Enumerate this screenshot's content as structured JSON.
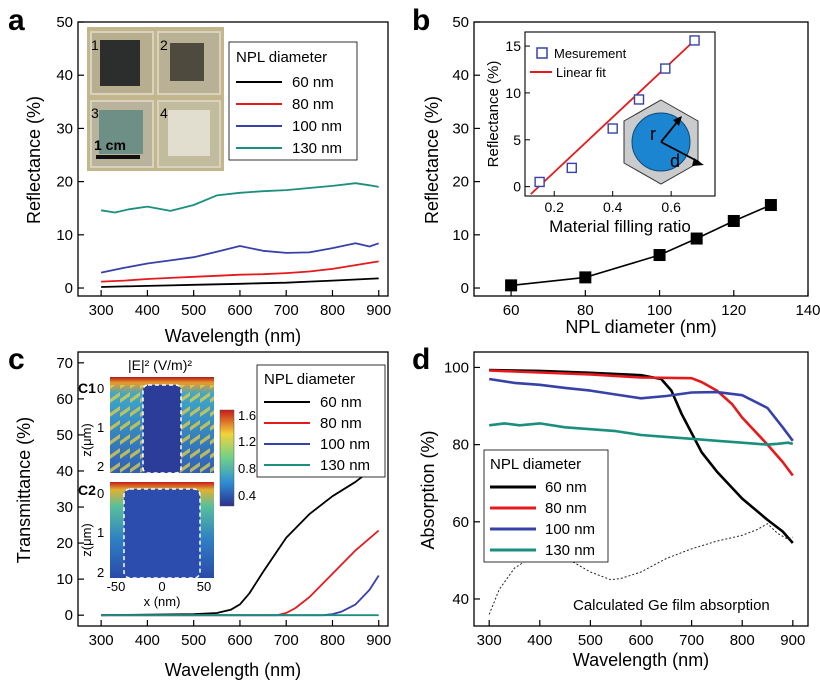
{
  "chart_data": [
    {
      "panel": "a",
      "type": "line",
      "xlabel": "Wavelength (nm)",
      "ylabel": "Reflectance (%)",
      "xlim": [
        250,
        920
      ],
      "ylim": [
        -1.5,
        50
      ],
      "xticks": [
        300,
        400,
        500,
        600,
        700,
        800,
        900
      ],
      "yticks": [
        0,
        10,
        20,
        30,
        40,
        50
      ],
      "legend_title": "NPL diameter",
      "legend_position": "top-right",
      "photo_labels": [
        "1",
        "2",
        "3",
        "4"
      ],
      "scale_bar_label": "1 cm",
      "series": [
        {
          "name": "60 nm",
          "color": "#000000",
          "x": [
            300,
            350,
            400,
            450,
            500,
            550,
            600,
            650,
            700,
            750,
            800,
            850,
            900
          ],
          "y": [
            0.2,
            0.3,
            0.4,
            0.5,
            0.6,
            0.7,
            0.8,
            0.9,
            1.0,
            1.2,
            1.4,
            1.6,
            1.8
          ]
        },
        {
          "name": "80 nm",
          "color": "#e41a1c",
          "x": [
            300,
            350,
            400,
            450,
            500,
            550,
            600,
            650,
            700,
            750,
            800,
            850,
            900
          ],
          "y": [
            1.2,
            1.4,
            1.7,
            1.9,
            2.1,
            2.3,
            2.5,
            2.6,
            2.8,
            3.1,
            3.6,
            4.3,
            5.0
          ]
        },
        {
          "name": "100 nm",
          "color": "#3742a8",
          "x": [
            300,
            350,
            400,
            450,
            500,
            550,
            600,
            650,
            700,
            750,
            800,
            850,
            880,
            900
          ],
          "y": [
            2.9,
            3.8,
            4.6,
            5.2,
            5.8,
            6.8,
            7.9,
            7.0,
            6.6,
            6.7,
            7.5,
            8.4,
            7.8,
            8.4
          ]
        },
        {
          "name": "130 nm",
          "color": "#1b8f7e",
          "x": [
            300,
            330,
            360,
            400,
            450,
            500,
            550,
            600,
            650,
            700,
            750,
            800,
            850,
            880,
            900
          ],
          "y": [
            14.6,
            14.2,
            14.8,
            15.3,
            14.5,
            15.6,
            17.4,
            17.9,
            18.2,
            18.4,
            18.8,
            19.2,
            19.7,
            19.3,
            19.0
          ]
        }
      ]
    },
    {
      "panel": "b",
      "type": "line",
      "xlabel": "NPL diameter (nm)",
      "ylabel": "Reflectance (%)",
      "xlim": [
        50,
        140
      ],
      "ylim": [
        -1.5,
        50
      ],
      "xticks": [
        60,
        80,
        100,
        120,
        140
      ],
      "yticks": [
        0,
        10,
        20,
        30,
        40,
        50
      ],
      "series": [
        {
          "name": "",
          "color": "#000000",
          "x": [
            60,
            80,
            100,
            110,
            120,
            130
          ],
          "y": [
            0.5,
            2.0,
            6.2,
            9.3,
            12.6,
            15.6
          ]
        }
      ],
      "inset": {
        "type": "scatter",
        "xlabel": "Material filling ratio",
        "ylabel": "Reflectance (%)",
        "xlim": [
          0.1,
          0.75
        ],
        "ylim": [
          -1,
          16.5
        ],
        "xticks": [
          0.2,
          0.4,
          0.6
        ],
        "yticks": [
          0,
          5,
          10,
          15
        ],
        "legend": [
          "Mesurement",
          "Linear fit"
        ],
        "points": {
          "name": "Mesurement",
          "color": "#3742a8",
          "x": [
            0.15,
            0.26,
            0.4,
            0.49,
            0.58,
            0.68
          ],
          "y": [
            0.5,
            2.0,
            6.2,
            9.3,
            12.6,
            15.6
          ]
        },
        "fit": {
          "name": "Linear fit",
          "color": "#e41a1c",
          "x": [
            0.12,
            0.69
          ],
          "y": [
            -0.8,
            15.9
          ]
        },
        "schematic_labels": [
          "r",
          "d"
        ]
      }
    },
    {
      "panel": "c",
      "type": "line",
      "xlabel": "Wavelength (nm)",
      "ylabel": "Transmittance (%)",
      "xlim": [
        250,
        920
      ],
      "ylim": [
        -3,
        73
      ],
      "xticks": [
        300,
        400,
        500,
        600,
        700,
        800,
        900
      ],
      "yticks": [
        0,
        10,
        20,
        30,
        40,
        50,
        60,
        70
      ],
      "legend_title": "NPL diameter",
      "legend_position": "top-right",
      "series": [
        {
          "name": "60 nm",
          "color": "#000000",
          "x": [
            300,
            500,
            550,
            580,
            600,
            620,
            650,
            700,
            750,
            800,
            850,
            880,
            900
          ],
          "y": [
            0,
            0.3,
            0.6,
            1.5,
            3,
            6,
            12,
            21.5,
            28,
            33,
            37,
            40,
            43
          ]
        },
        {
          "name": "80 nm",
          "color": "#e41a1c",
          "x": [
            300,
            680,
            700,
            720,
            750,
            800,
            850,
            900
          ],
          "y": [
            0,
            0,
            0.6,
            2,
            5,
            11.5,
            18,
            23.5
          ]
        },
        {
          "name": "100 nm",
          "color": "#3742a8",
          "x": [
            300,
            780,
            800,
            820,
            850,
            880,
            900
          ],
          "y": [
            0,
            0,
            0.3,
            1,
            3,
            7,
            11
          ]
        },
        {
          "name": "130 nm",
          "color": "#1b8f7e",
          "x": [
            300,
            900
          ],
          "y": [
            0,
            0
          ]
        }
      ],
      "inset": {
        "title": "|E|² (V/m)²",
        "panel_labels": [
          "C1",
          "C2"
        ],
        "zlabel": "z(μm)",
        "xlabel": "x (nm)",
        "c1_zticks": [
          "0",
          "1",
          "2"
        ],
        "c2_zticks": [
          "0",
          "1",
          "2"
        ],
        "xticks": [
          "-50",
          "0",
          "50"
        ],
        "colorbar_ticks": [
          "1.6",
          "1.2",
          "0.8",
          "0.4"
        ]
      }
    },
    {
      "panel": "d",
      "type": "line",
      "xlabel": "Wavelength (nm)",
      "ylabel": "Absorption (%)",
      "xlim": [
        270,
        930
      ],
      "ylim": [
        33,
        104
      ],
      "xticks": [
        300,
        400,
        500,
        600,
        700,
        800,
        900
      ],
      "yticks": [
        40,
        60,
        80,
        100
      ],
      "legend_title": "NPL diameter",
      "legend_position": "center-left",
      "annotation": "Calculated Ge film absorption",
      "series": [
        {
          "name": "60 nm",
          "color": "#000000",
          "x": [
            300,
            400,
            500,
            600,
            640,
            660,
            680,
            700,
            720,
            750,
            800,
            850,
            880,
            900
          ],
          "y": [
            99.3,
            99.1,
            98.6,
            98.0,
            97.0,
            94.0,
            88.0,
            83.0,
            78.0,
            73.0,
            66.0,
            60.5,
            57.5,
            54.5
          ]
        },
        {
          "name": "80 nm",
          "color": "#e41a1c",
          "x": [
            300,
            400,
            500,
            600,
            700,
            720,
            750,
            780,
            800,
            850,
            880,
            900
          ],
          "y": [
            99.2,
            98.7,
            98.2,
            97.4,
            97.2,
            96.2,
            94.0,
            90.5,
            87.0,
            80.0,
            75.5,
            72.0
          ]
        },
        {
          "name": "100 nm",
          "color": "#3742a8",
          "x": [
            300,
            350,
            400,
            450,
            500,
            550,
            600,
            650,
            700,
            750,
            800,
            850,
            880,
            900
          ],
          "y": [
            97.0,
            96.0,
            95.5,
            94.7,
            94.0,
            93.0,
            92.0,
            92.6,
            93.5,
            93.6,
            92.8,
            89.5,
            84.5,
            81.0
          ]
        },
        {
          "name": "130 nm",
          "color": "#1b8f7e",
          "x": [
            300,
            330,
            360,
            400,
            450,
            500,
            550,
            600,
            650,
            700,
            750,
            800,
            850,
            870,
            890,
            900
          ],
          "y": [
            85.0,
            85.5,
            85.0,
            85.5,
            84.5,
            84.0,
            83.5,
            82.5,
            82.0,
            81.5,
            81.0,
            80.5,
            80.0,
            80.2,
            80.5,
            80.2
          ]
        },
        {
          "name": "Calculated Ge film absorption",
          "color": "#222222",
          "dashed": true,
          "x": [
            300,
            320,
            350,
            380,
            420,
            460,
            500,
            540,
            560,
            600,
            650,
            700,
            750,
            800,
            830,
            850,
            870,
            890,
            900
          ],
          "y": [
            36.0,
            42.5,
            48.0,
            50.5,
            51.5,
            50.0,
            47.0,
            45.0,
            45.3,
            47.0,
            50.5,
            53.0,
            55.0,
            56.5,
            58.0,
            59.5,
            57.0,
            55.5,
            56.0
          ]
        }
      ]
    }
  ],
  "panels": {
    "a": "a",
    "b": "b",
    "c": "c",
    "d": "d"
  }
}
